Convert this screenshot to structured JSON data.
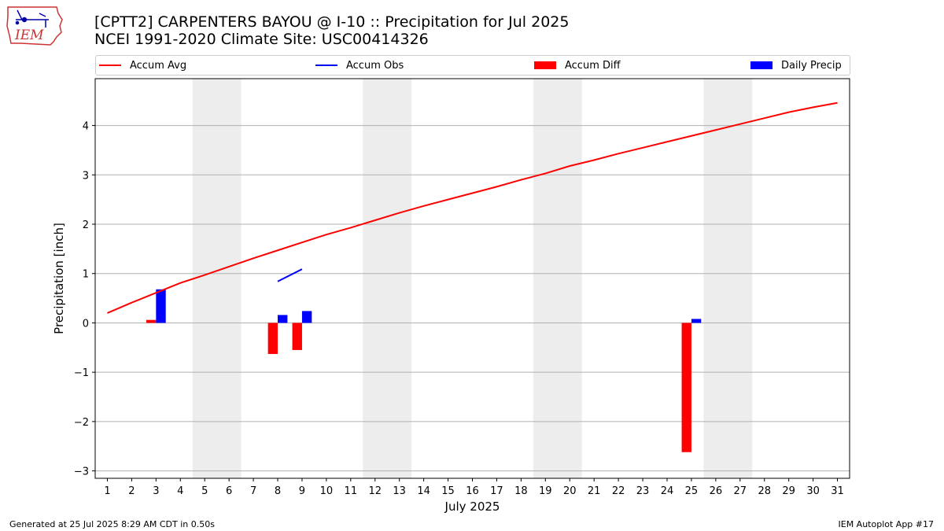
{
  "header": {
    "title_line1": "[CPTT2] CARPENTERS BAYOU @ I-10 :: Precipitation for Jul 2025",
    "title_line2": "NCEI 1991-2020 Climate Site: USC00414326",
    "logo_text": "IEM"
  },
  "footer": {
    "left": "Generated at 25 Jul 2025 8:29 AM CDT in 0.50s",
    "right": "IEM Autoplot App #17"
  },
  "legend": {
    "accum_avg": "Accum Avg",
    "accum_obs": "Accum Obs",
    "accum_diff": "Accum Diff",
    "daily_precip": "Daily Precip"
  },
  "colors": {
    "accum_avg": "#ff0000",
    "accum_obs": "#0000ff",
    "accum_diff": "#ff0000",
    "daily_precip": "#0000ff",
    "weekend_shade": "#ededed",
    "grid": "#b0b0b0"
  },
  "chart_data": {
    "type": "bar",
    "title": "[CPTT2] CARPENTERS BAYOU @ I-10 :: Precipitation for Jul 2025",
    "xlabel": "July 2025",
    "ylabel": "Precipitation [inch]",
    "xlim": [
      0.5,
      31.5
    ],
    "ylim": [
      -3.15,
      4.95
    ],
    "yticks": [
      -3,
      -2,
      -1,
      0,
      1,
      2,
      3,
      4
    ],
    "ytick_labels": [
      "−3",
      "−2",
      "−1",
      "0",
      "1",
      "2",
      "3",
      "4"
    ],
    "categories": [
      1,
      2,
      3,
      4,
      5,
      6,
      7,
      8,
      9,
      10,
      11,
      12,
      13,
      14,
      15,
      16,
      17,
      18,
      19,
      20,
      21,
      22,
      23,
      24,
      25,
      26,
      27,
      28,
      29,
      30,
      31
    ],
    "x_tick_labels": [
      "1",
      "2",
      "3",
      "4",
      "5",
      "6",
      "7",
      "8",
      "9",
      "10",
      "11",
      "12",
      "13",
      "14",
      "15",
      "16",
      "17",
      "18",
      "19",
      "20",
      "21",
      "22",
      "23",
      "24",
      "25",
      "26",
      "27",
      "28",
      "29",
      "30",
      "31"
    ],
    "grid": "y",
    "legend_position": "top",
    "weekend_shading": [
      [
        4.5,
        6.5
      ],
      [
        11.5,
        13.5
      ],
      [
        18.5,
        20.5
      ],
      [
        25.5,
        27.5
      ]
    ],
    "series": [
      {
        "name": "Accum Avg",
        "kind": "line",
        "x": [
          1,
          2,
          3,
          4,
          5,
          6,
          7,
          8,
          9,
          10,
          11,
          12,
          13,
          14,
          15,
          16,
          17,
          18,
          19,
          20,
          21,
          22,
          23,
          24,
          25,
          26,
          27,
          28,
          29,
          30,
          31
        ],
        "values": [
          0.2,
          0.41,
          0.61,
          0.81,
          0.97,
          1.14,
          1.31,
          1.47,
          1.63,
          1.79,
          1.93,
          2.08,
          2.23,
          2.37,
          2.5,
          2.63,
          2.76,
          2.9,
          3.03,
          3.18,
          3.3,
          3.43,
          3.55,
          3.67,
          3.79,
          3.91,
          4.03,
          4.15,
          4.27,
          4.37,
          4.46
        ]
      },
      {
        "name": "Accum Obs",
        "kind": "line",
        "x": [
          8,
          9
        ],
        "values": [
          0.84,
          1.09
        ]
      },
      {
        "name": "Accum Diff",
        "kind": "bar",
        "x": [
          3,
          8,
          9,
          25
        ],
        "values": [
          0.06,
          -0.63,
          -0.55,
          -2.62
        ]
      },
      {
        "name": "Daily Precip",
        "kind": "bar",
        "x": [
          3,
          8,
          9,
          25
        ],
        "values": [
          0.68,
          0.16,
          0.24,
          0.08
        ]
      }
    ]
  }
}
